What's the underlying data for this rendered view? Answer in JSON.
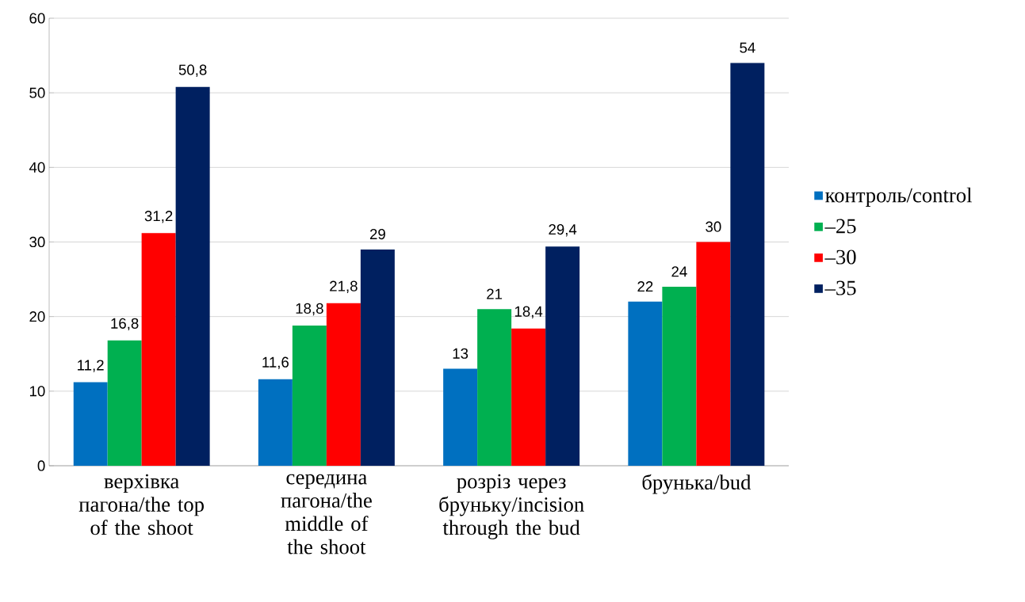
{
  "chart_data": {
    "type": "bar",
    "categories": [
      "верхівка пагона/the top of the shoot",
      "середина пагона/the middle of the shoot",
      "розріз через бруньку/incision through the bud",
      "брунька/bud"
    ],
    "series": [
      {
        "name": "контроль/control",
        "color": "#0070c0",
        "values": [
          11.2,
          11.6,
          13,
          22
        ],
        "value_labels": [
          "11,2",
          "11,6",
          "13",
          "22"
        ]
      },
      {
        "name": "–25",
        "color": "#00b050",
        "values": [
          16.8,
          18.8,
          21,
          24
        ],
        "value_labels": [
          "16,8",
          "18,8",
          "21",
          "24"
        ]
      },
      {
        "name": "–30",
        "color": "#ff0000",
        "values": [
          31.2,
          21.8,
          18.4,
          30
        ],
        "value_labels": [
          "31,2",
          "21,8",
          "18,4",
          "30"
        ]
      },
      {
        "name": "–35",
        "color": "#002060",
        "values": [
          50.8,
          29,
          29.4,
          54
        ],
        "value_labels": [
          "50,8",
          "29",
          "29,4",
          "54"
        ]
      }
    ],
    "ylim": [
      0,
      60
    ],
    "yticks": [
      0,
      10,
      20,
      30,
      40,
      50,
      60
    ],
    "grid": "y",
    "legend": "right"
  }
}
